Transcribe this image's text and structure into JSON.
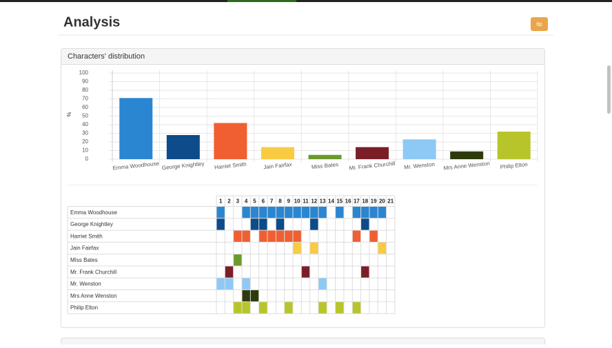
{
  "header": {
    "title": "Analysis",
    "button": "tip"
  },
  "panel": {
    "title": "Characters' distribution"
  },
  "chart_data": {
    "type": "bar",
    "ylabel": "%",
    "categories": [
      "Emma Woodhouse",
      "George Knightley",
      "Harriet Smith",
      "Jain Fairfax",
      "Miss Bates",
      "Mr. Frank Churchill",
      "Mr. Wenston",
      "Mrs Anne Wenston",
      "Philip Elton"
    ],
    "values": [
      71,
      28,
      42,
      14,
      5,
      14,
      23,
      9,
      32
    ],
    "colors": [
      "#2b86d1",
      "#0d4b8a",
      "#f05f32",
      "#f8cb42",
      "#6b9a2c",
      "#7a1f27",
      "#8ec9f6",
      "#2d3b0c",
      "#b8c52a"
    ],
    "ylim": [
      0,
      100
    ],
    "yticks": [
      0,
      10,
      20,
      30,
      40,
      50,
      60,
      70,
      80,
      90,
      100
    ],
    "grid": true
  },
  "table": {
    "columns": [
      1,
      2,
      3,
      4,
      5,
      6,
      7,
      8,
      9,
      10,
      11,
      12,
      13,
      14,
      15,
      16,
      17,
      18,
      19,
      20,
      21
    ],
    "rows": [
      {
        "name": "Emma Woodhouse",
        "chapters": [
          1,
          4,
          5,
          6,
          7,
          8,
          9,
          10,
          11,
          12,
          13,
          15,
          17,
          18,
          19,
          20
        ]
      },
      {
        "name": "George Knightley",
        "chapters": [
          1,
          5,
          6,
          8,
          12,
          18
        ]
      },
      {
        "name": "Harriet Smith",
        "chapters": [
          3,
          4,
          6,
          7,
          8,
          9,
          10,
          17,
          19
        ]
      },
      {
        "name": "Jain Fairfax",
        "chapters": [
          10,
          12,
          20
        ]
      },
      {
        "name": "MIss Bates",
        "chapters": [
          3
        ]
      },
      {
        "name": "Mr. Frank Churchill",
        "chapters": [
          2,
          11,
          18
        ]
      },
      {
        "name": "Mr. Wenston",
        "chapters": [
          1,
          2,
          4,
          13
        ]
      },
      {
        "name": "Mrs Anne Wenston",
        "chapters": [
          4,
          5
        ]
      },
      {
        "name": "Philip Elton",
        "chapters": [
          3,
          4,
          6,
          9,
          13,
          15,
          17
        ]
      }
    ]
  }
}
